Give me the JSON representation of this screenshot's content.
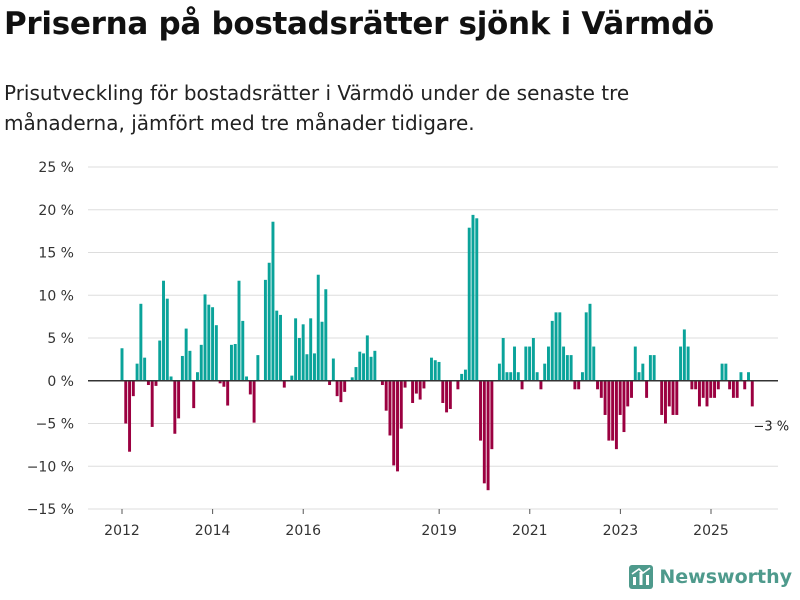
{
  "header": {
    "title": "Priserna på bostadsrätter sjönk i Värmdö",
    "subtitle": "Prisutveckling för bostadsrätter i Värmdö under de senaste tre månaderna, jämfört med tre månader tidigare."
  },
  "brand": {
    "name": "Newsworthy",
    "icon": "newsworthy-logo-icon"
  },
  "colors": {
    "positive": "#0aa39a",
    "negative": "#9b0040",
    "grid": "#dddddd",
    "axis": "#333333"
  },
  "chart_data": {
    "type": "bar",
    "title": "Priserna på bostadsrätter sjönk i Värmdö",
    "xlabel": "",
    "ylabel": "",
    "ylim": [
      -15,
      25
    ],
    "yticks": [
      25,
      20,
      15,
      10,
      5,
      0,
      -5,
      -10,
      -15
    ],
    "ytick_labels": [
      "25 %",
      "20 %",
      "15 %",
      "10 %",
      "5 %",
      "0 %",
      "−5 %",
      "−10 %",
      "−15 %"
    ],
    "xticks": [
      {
        "label": "2012",
        "x": 2012.0
      },
      {
        "label": "2014",
        "x": 2014.0
      },
      {
        "label": "2016",
        "x": 2016.0
      },
      {
        "label": "2019",
        "x": 2019.0
      },
      {
        "label": "2021",
        "x": 2021.0
      },
      {
        "label": "2023",
        "x": 2023.0
      },
      {
        "label": "2025",
        "x": 2025.0
      }
    ],
    "start": 2012.0,
    "step": 0.0833,
    "values": [
      3.8,
      -5,
      -8.3,
      -1.8,
      2,
      9,
      2.7,
      -0.5,
      -5.4,
      -0.6,
      4.7,
      11.7,
      9.6,
      0.5,
      -6.2,
      -4.4,
      2.9,
      6.1,
      3.5,
      -3.2,
      1,
      4.2,
      10.1,
      8.9,
      8.6,
      6.5,
      -0.3,
      -0.7,
      -2.9,
      4.2,
      4.3,
      11.7,
      7,
      0.5,
      -1.6,
      -4.9,
      3,
      0,
      11.8,
      13.8,
      18.6,
      8.2,
      7.7,
      -0.8,
      0,
      0.6,
      7.3,
      5,
      6.6,
      3.1,
      7.3,
      3.2,
      12.4,
      6.9,
      10.7,
      -0.5,
      2.6,
      -1.8,
      -2.5,
      -1.3,
      0,
      0.4,
      1.6,
      3.4,
      3.2,
      5.3,
      2.8,
      3.5,
      0,
      -0.5,
      -3.5,
      -6.4,
      -9.9,
      -10.6,
      -5.6,
      -0.8,
      0,
      -2.6,
      -1.5,
      -2.2,
      -0.9,
      0,
      2.7,
      2.4,
      2.2,
      -2.6,
      -3.7,
      -3.3,
      0,
      -1,
      0.8,
      1.3,
      17.9,
      19.4,
      19,
      -7,
      -12,
      -12.8,
      -8,
      0,
      2,
      5,
      1,
      1,
      4,
      1,
      -1,
      4,
      4,
      5,
      1,
      -1,
      2,
      4,
      7,
      8,
      8,
      4,
      3,
      3,
      -1,
      -1,
      1,
      8,
      9,
      4,
      -1,
      -2,
      -4,
      -7,
      -7,
      -8,
      -4,
      -6,
      -3,
      -2,
      4,
      1,
      2,
      -2,
      3,
      3,
      0,
      -4,
      -5,
      -3,
      -4,
      -4,
      4,
      6,
      4,
      -1,
      -1,
      -3,
      -2,
      -3,
      -2,
      -2,
      -1,
      2,
      2,
      -1,
      -2,
      -2,
      1,
      -1,
      1,
      -3
    ],
    "annotations": [
      {
        "text": "−3 %",
        "anchor": "last-bar"
      }
    ]
  }
}
